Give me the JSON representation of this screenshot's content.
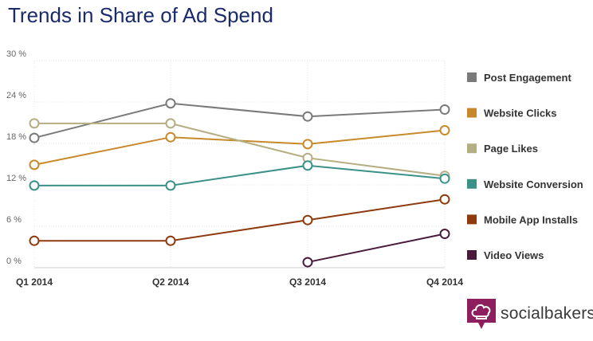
{
  "chart_data": {
    "type": "line",
    "title": "Trends in Share of Ad Spend",
    "categories": [
      "Q1 2014",
      "Q2 2014",
      "Q3 2014",
      "Q4 2014"
    ],
    "y_ticks": [
      "0 %",
      "6 %",
      "12 %",
      "18 %",
      "24 %",
      "30 %"
    ],
    "ylim": [
      0,
      30
    ],
    "grid": true,
    "legend_position": "right",
    "series": [
      {
        "name": "Post Engagement",
        "color": "#7a7a7a",
        "values": [
          18.8,
          23.8,
          21.9,
          22.9
        ]
      },
      {
        "name": "Website Clicks",
        "color": "#c8892b",
        "values": [
          14.9,
          18.9,
          17.9,
          19.9
        ]
      },
      {
        "name": "Page Likes",
        "color": "#b5ae82",
        "values": [
          20.9,
          20.9,
          15.9,
          13.3
        ]
      },
      {
        "name": "Website Conversion",
        "color": "#3b9187",
        "values": [
          11.9,
          11.9,
          14.8,
          12.9
        ]
      },
      {
        "name": "Mobile App Installs",
        "color": "#8e3a0e",
        "values": [
          3.9,
          3.9,
          6.9,
          9.9
        ]
      },
      {
        "name": "Video Views",
        "color": "#4a1a3a",
        "values": [
          null,
          null,
          0.8,
          4.9
        ]
      }
    ]
  },
  "logo": {
    "text": "socialbakers",
    "icon": "chef-hat-icon",
    "color": "#8e1f5f"
  }
}
